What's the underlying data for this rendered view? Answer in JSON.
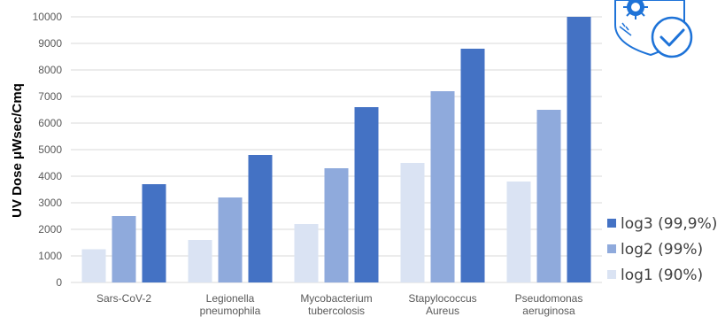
{
  "chart_data": {
    "type": "bar",
    "title": "",
    "xlabel": "",
    "ylabel": "UV Dose μWsec/Cmq",
    "ylim": [
      0,
      10000
    ],
    "yticks": [
      0,
      1000,
      2000,
      3000,
      4000,
      5000,
      6000,
      7000,
      8000,
      9000,
      10000
    ],
    "grid": true,
    "legend_position": "right",
    "categories": [
      [
        "Sars-CoV-2"
      ],
      [
        "Legionella",
        "pneumophila"
      ],
      [
        "Mycobacterium",
        "tubercolosis"
      ],
      [
        "Stapylococcus",
        "Aureus"
      ],
      [
        "Pseudomonas",
        "aeruginosa"
      ]
    ],
    "series": [
      {
        "name": "log1 (90%)",
        "color": "#dae3f3",
        "values": [
          1250,
          1600,
          2200,
          4500,
          3800
        ]
      },
      {
        "name": "log2 (99%)",
        "color": "#8faadc",
        "values": [
          2500,
          3200,
          4300,
          7200,
          6500
        ]
      },
      {
        "name": "log3 (99,9%)",
        "color": "#4472c4",
        "values": [
          3700,
          4800,
          6600,
          8800,
          10000
        ]
      }
    ],
    "legend_order": [
      2,
      1,
      0
    ],
    "badge_icon": "virus-shield-check-icon"
  }
}
